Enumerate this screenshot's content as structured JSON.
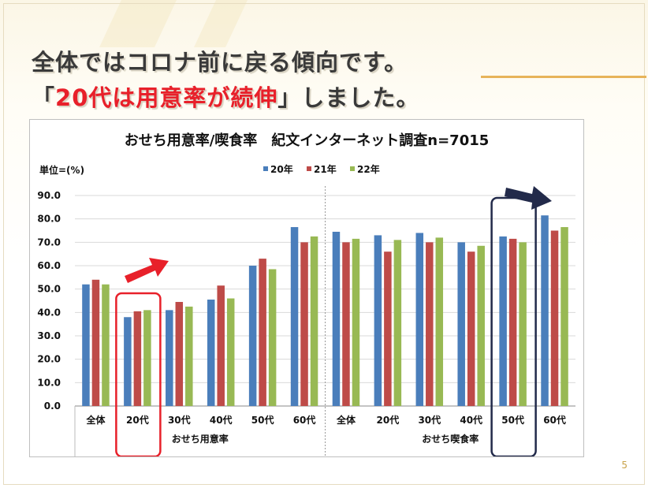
{
  "header": {
    "line1": "全体ではコロナ前に戻る傾向です。",
    "line2_prefix": "「",
    "line2_highlight": "20代は用意率が続伸",
    "line2_suffix": "」しました。"
  },
  "page_number": "5",
  "colors": {
    "s20": "#4a7ebb",
    "s21": "#be4b48",
    "s22": "#98b954",
    "red_box": "#e8202a",
    "navy": "#222a4a"
  },
  "chart_data": {
    "type": "bar",
    "title": "おせち用意率/喫食率　紀文インターネット調査n=7015",
    "ylabel": "単位=(%)",
    "ylim": [
      0,
      90
    ],
    "yticks": [
      "0.0",
      "10.0",
      "20.0",
      "30.0",
      "40.0",
      "50.0",
      "60.0",
      "70.0",
      "80.0",
      "90.0"
    ],
    "legend_position": "top",
    "categories": [
      "全体",
      "20代",
      "30代",
      "40代",
      "50代",
      "60代",
      "全体",
      "20代",
      "30代",
      "40代",
      "50代",
      "60代"
    ],
    "groups": [
      "おせち用意率",
      "おせち喫食率"
    ],
    "series": [
      {
        "name": "20年",
        "values": [
          52.0,
          38.0,
          41.0,
          45.5,
          60.0,
          76.5,
          74.5,
          73.0,
          74.0,
          70.0,
          72.5,
          81.5
        ]
      },
      {
        "name": "21年",
        "values": [
          54.0,
          40.5,
          44.5,
          51.5,
          63.0,
          70.0,
          70.0,
          66.0,
          70.0,
          66.0,
          71.5,
          75.0
        ]
      },
      {
        "name": "22年",
        "values": [
          52.0,
          41.0,
          42.5,
          46.0,
          58.5,
          72.5,
          71.5,
          71.0,
          72.0,
          68.5,
          70.0,
          76.5
        ]
      }
    ]
  }
}
